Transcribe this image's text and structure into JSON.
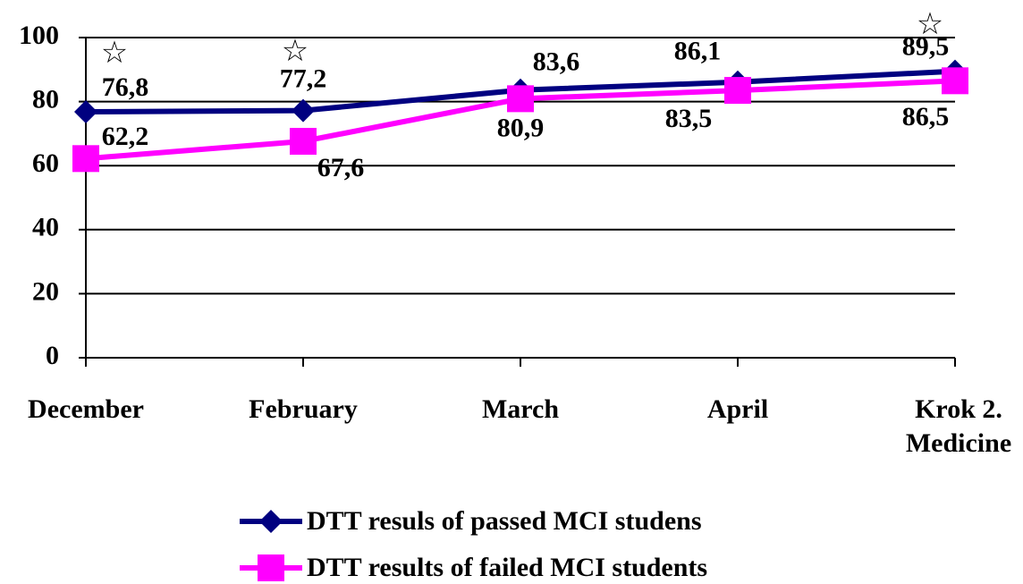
{
  "chart_data": {
    "type": "line",
    "categories": [
      "December",
      "February",
      "March",
      "April",
      "Krok 2.\nMedicine"
    ],
    "series": [
      {
        "name": "DTT resuls of passed MCI studens",
        "color": "#000080",
        "values": [
          76.8,
          77.2,
          83.6,
          86.1,
          89.5
        ],
        "value_labels": [
          "76,8",
          "77,2",
          "83,6",
          "86,1",
          "89,5"
        ]
      },
      {
        "name": "DTT results of failed MCI students",
        "color": "#ff00ff",
        "values": [
          62.2,
          67.6,
          80.9,
          83.5,
          86.5
        ],
        "value_labels": [
          "62,2",
          "67,6",
          "80,9",
          "83,5",
          "86,5"
        ]
      }
    ],
    "annotations": [
      {
        "label": "☆",
        "category": "December"
      },
      {
        "label": "☆",
        "category": "February"
      },
      {
        "label": "☆",
        "category": "Krok 2.\nMedicine"
      }
    ],
    "ylim": [
      0,
      100
    ],
    "yticks": [
      0,
      20,
      40,
      60,
      80,
      100
    ],
    "grid": true,
    "legend": "bottom"
  }
}
